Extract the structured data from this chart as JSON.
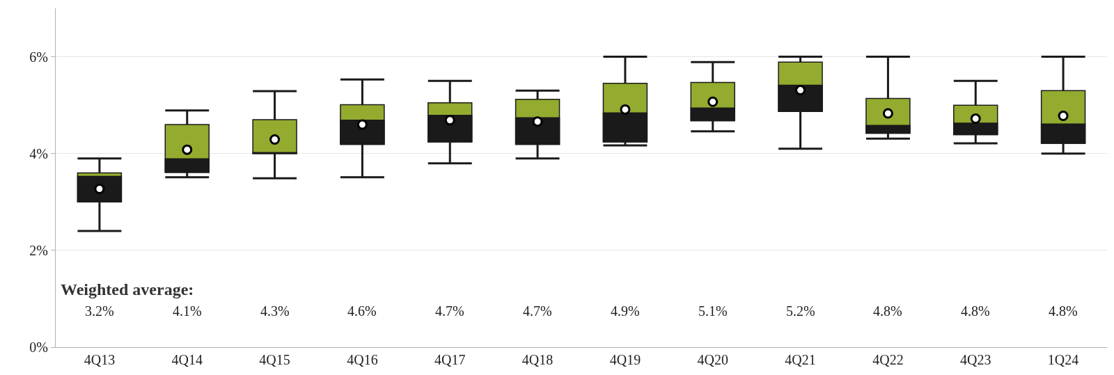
{
  "chart_data": {
    "type": "box",
    "categories": [
      "4Q13",
      "4Q14",
      "4Q15",
      "4Q16",
      "4Q17",
      "4Q18",
      "4Q19",
      "4Q20",
      "4Q21",
      "4Q22",
      "4Q23",
      "1Q24"
    ],
    "boxes": [
      {
        "low": 2.4,
        "q1": 3.0,
        "median": 3.53,
        "q3": 3.6,
        "high": 3.9,
        "mean": 3.27
      },
      {
        "low": 3.51,
        "q1": 3.61,
        "median": 3.89,
        "q3": 4.6,
        "high": 4.89,
        "mean": 4.08
      },
      {
        "low": 3.49,
        "q1": 4.0,
        "median": 4.02,
        "q3": 4.7,
        "high": 5.29,
        "mean": 4.29
      },
      {
        "low": 3.51,
        "q1": 4.19,
        "median": 4.69,
        "q3": 5.01,
        "high": 5.53,
        "mean": 4.6
      },
      {
        "low": 3.8,
        "q1": 4.24,
        "median": 4.79,
        "q3": 5.05,
        "high": 5.5,
        "mean": 4.69
      },
      {
        "low": 3.9,
        "q1": 4.19,
        "median": 4.74,
        "q3": 5.12,
        "high": 5.3,
        "mean": 4.66
      },
      {
        "low": 4.17,
        "q1": 4.24,
        "median": 4.84,
        "q3": 5.45,
        "high": 6.0,
        "mean": 4.91
      },
      {
        "low": 4.46,
        "q1": 4.68,
        "median": 4.94,
        "q3": 5.47,
        "high": 5.89,
        "mean": 5.07
      },
      {
        "low": 4.1,
        "q1": 4.87,
        "median": 5.41,
        "q3": 5.89,
        "high": 6.0,
        "mean": 5.31
      },
      {
        "low": 4.31,
        "q1": 4.42,
        "median": 4.58,
        "q3": 5.14,
        "high": 6.0,
        "mean": 4.83
      },
      {
        "low": 4.21,
        "q1": 4.39,
        "median": 4.63,
        "q3": 5.0,
        "high": 5.5,
        "mean": 4.72
      },
      {
        "low": 4.0,
        "q1": 4.21,
        "median": 4.61,
        "q3": 5.3,
        "high": 6.0,
        "mean": 4.78
      }
    ],
    "color": "#1a1a1a",
    "colors": [
      "#93ab2f",
      "#93ab2f",
      "#93ab2f",
      "#93ab2f",
      "#93ab2f",
      "#93ab2f",
      "#93ab2f",
      "#93ab2f",
      "#93ab2f",
      "#93ab2f",
      "#93ab2f",
      "#93ab2f"
    ],
    "ylim": [
      0,
      7
    ],
    "yticks": [
      {
        "value": 0,
        "label": "0%"
      },
      {
        "value": 2,
        "label": "2%"
      },
      {
        "value": 4,
        "label": "4%"
      },
      {
        "value": 6,
        "label": "6%"
      }
    ],
    "grid": "y",
    "annotations": [
      "Weighted average:",
      "3.2%",
      "4.1%",
      "4.3%",
      "4.6%",
      "4.7%",
      "4.7%",
      "4.9%",
      "5.1%",
      "5.2%",
      "4.8%",
      "4.8%",
      "4.8%"
    ]
  }
}
